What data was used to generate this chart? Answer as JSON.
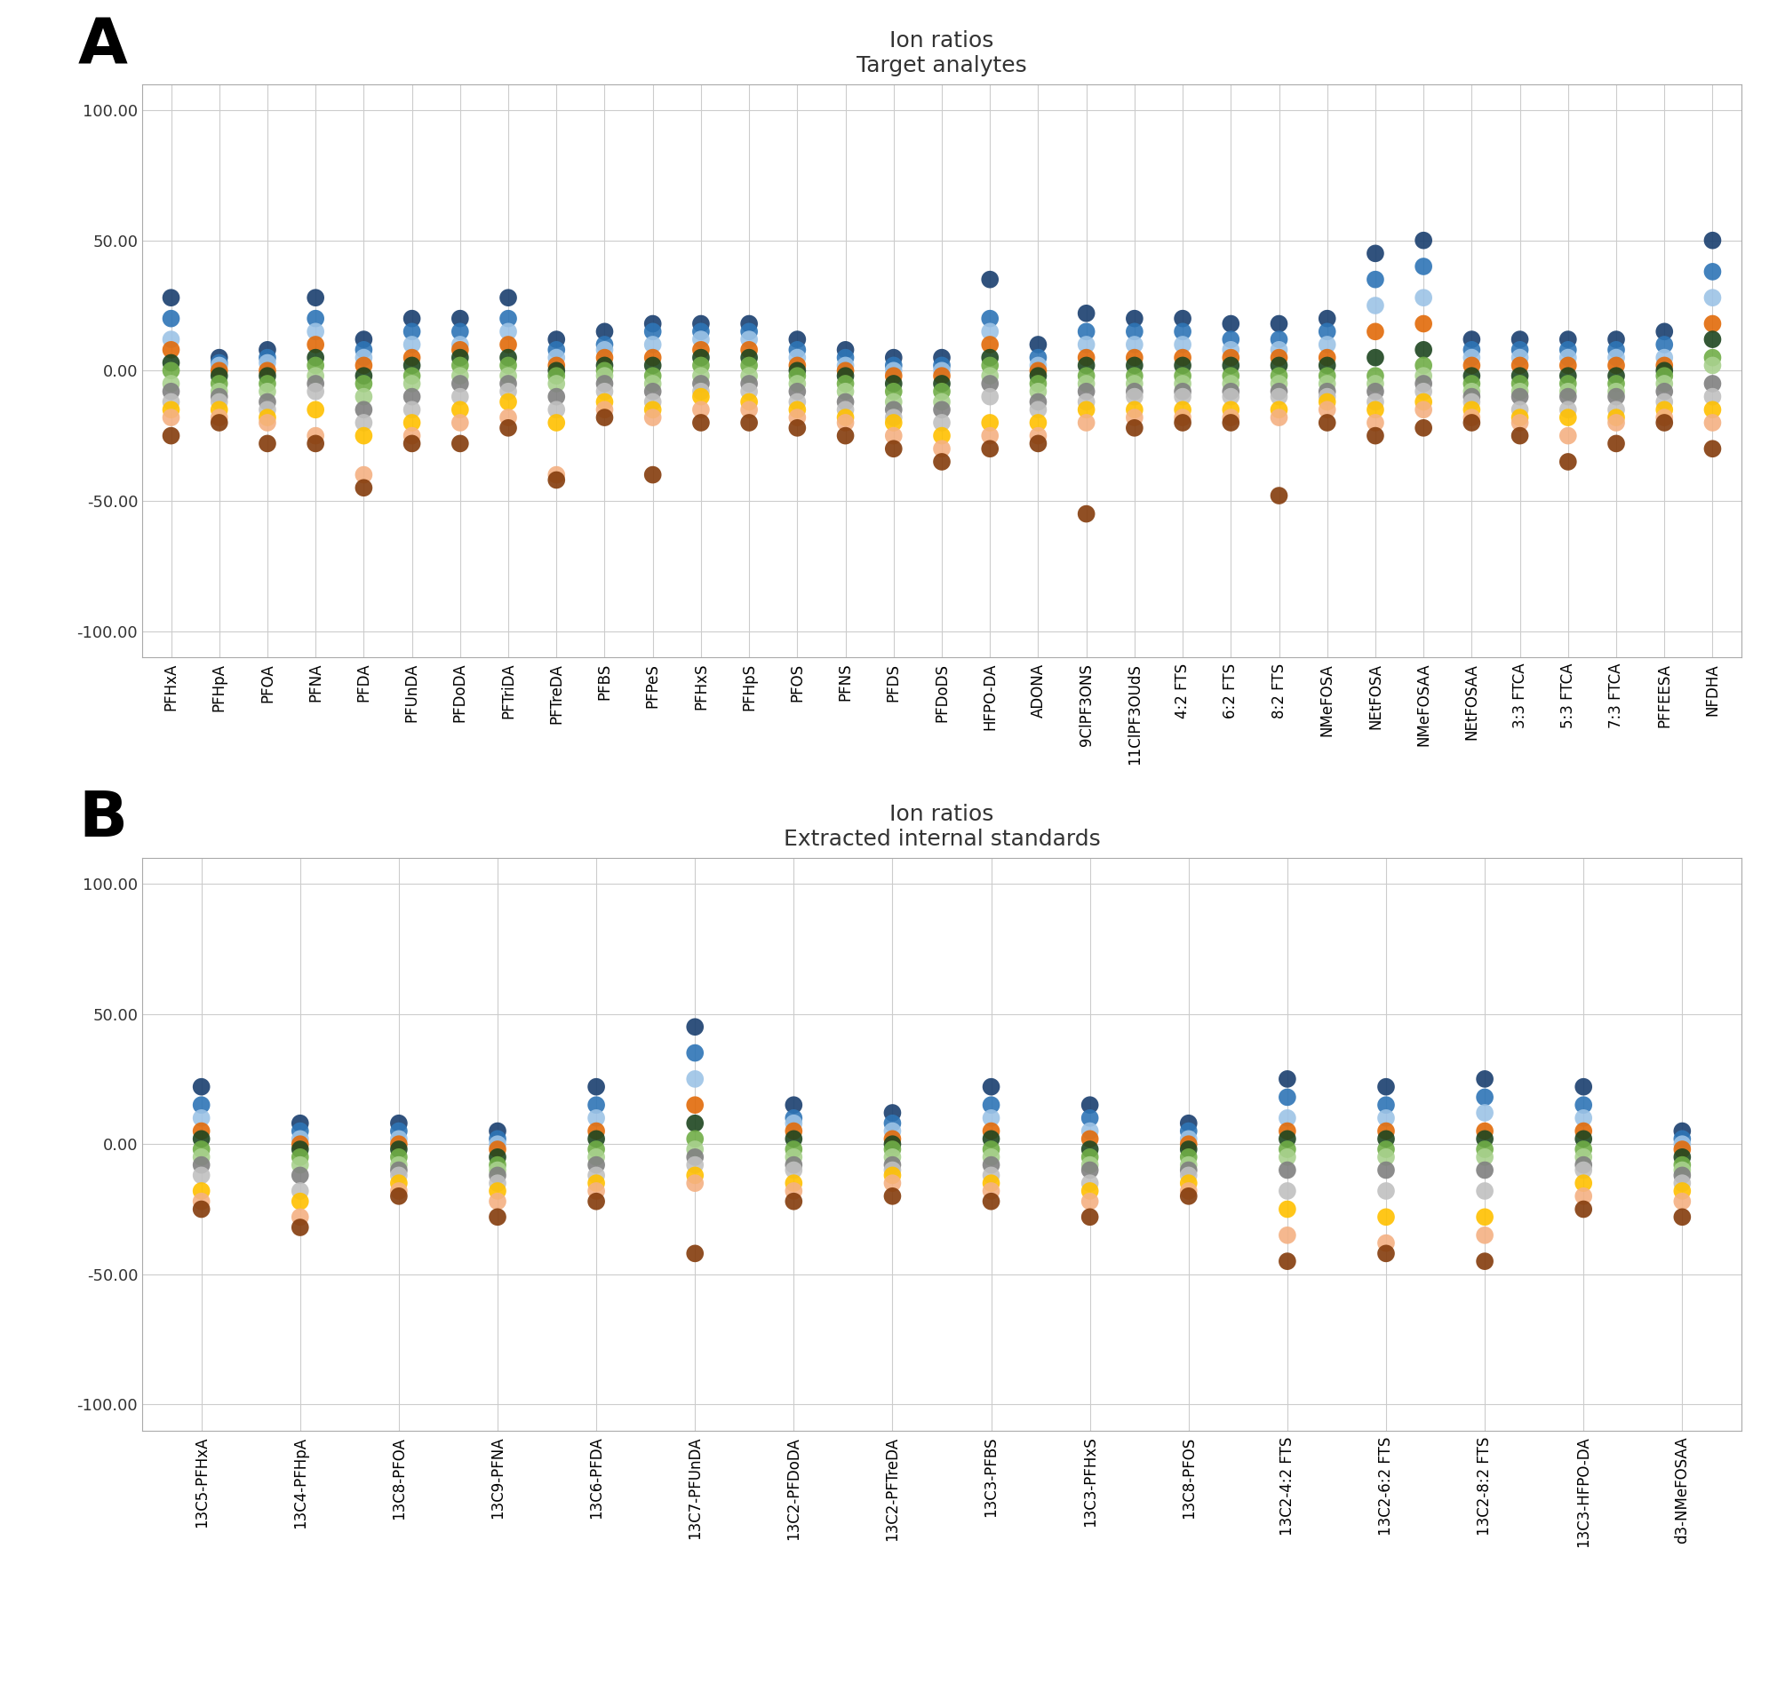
{
  "panel_A_title": "Ion ratios",
  "panel_A_subtitle": "Target analytes",
  "panel_B_title": "Ion ratios",
  "panel_B_subtitle": "Extracted internal standards",
  "panel_A_label": "A",
  "panel_B_label": "B",
  "ylim": [
    -110,
    110
  ],
  "yticks": [
    -100.0,
    -50.0,
    0.0,
    50.0,
    100.0
  ],
  "ytick_labels": [
    "-100.00",
    "-50.00",
    "0.00",
    "50.00",
    "100.00"
  ],
  "colors": [
    "#1a3f6f",
    "#2e75b6",
    "#9dc3e6",
    "#e26b0a",
    "#1e4620",
    "#70ad47",
    "#a9d18e",
    "#808080",
    "#c0c0c0",
    "#ffc000",
    "#f4b183",
    "#843c0c"
  ],
  "marker_size": 200,
  "alpha": 0.9,
  "panel_A_analytes": [
    "PFHxA",
    "PFHpA",
    "PFOA",
    "PFNA",
    "PFDA",
    "PFUnDA",
    "PFDoDA",
    "PFTriDA",
    "PFTreDA",
    "PFBS",
    "PFPeS",
    "PFHxS",
    "PFHpS",
    "PFOS",
    "PFNS",
    "PFDS",
    "PFDoDS",
    "HFPO-DA",
    "ADONA",
    "9ClPF3ONS",
    "11ClPF3OUdS",
    "4:2 FTS",
    "6:2 FTS",
    "8:2 FTS",
    "NMeFOSA",
    "NEtFOSA",
    "NMeFOSAA",
    "NEtFOSAA",
    "3:3 FTCA",
    "5:3 FTCA",
    "7:3 FTCA",
    "PFFEESA",
    "NFDHA"
  ],
  "panel_B_analytes": [
    "13C5-PFHxA",
    "13C4-PFHpA",
    "13C8-PFOA",
    "13C9-PFNA",
    "13C6-PFDA",
    "13C7-PFUnDA",
    "13C2-PFDoDA",
    "13C2-PFTreDA",
    "13C3-PFBS",
    "13C3-PFHxS",
    "13C8-PFOS",
    "13C2-4:2 FTS",
    "13C2-6:2 FTS",
    "13C2-8:2 FTS",
    "13C3-HFPO-DA",
    "d3-NMeFOSAA"
  ],
  "panel_A_data": {
    "PFHxA": [
      28,
      20,
      12,
      8,
      3,
      0,
      -5,
      -8,
      -12,
      -15,
      -18,
      -25
    ],
    "PFHpA": [
      5,
      3,
      2,
      0,
      -2,
      -5,
      -8,
      -10,
      -12,
      -15,
      -18,
      -20
    ],
    "PFOA": [
      8,
      5,
      3,
      0,
      -2,
      -5,
      -8,
      -12,
      -15,
      -18,
      -20,
      -28
    ],
    "PFNA": [
      28,
      20,
      15,
      10,
      5,
      2,
      -2,
      -5,
      -8,
      -15,
      -25,
      -28
    ],
    "PFDA": [
      12,
      8,
      5,
      2,
      -2,
      -5,
      -10,
      -15,
      -20,
      -25,
      -40,
      -45
    ],
    "PFUnDA": [
      20,
      15,
      10,
      5,
      2,
      -2,
      -5,
      -10,
      -15,
      -20,
      -25,
      -28
    ],
    "PFDoDA": [
      20,
      15,
      10,
      8,
      5,
      2,
      -2,
      -5,
      -10,
      -15,
      -20,
      -28
    ],
    "PFTriDA": [
      28,
      20,
      15,
      10,
      5,
      2,
      -2,
      -5,
      -8,
      -12,
      -18,
      -22
    ],
    "PFTreDA": [
      12,
      8,
      5,
      2,
      0,
      -2,
      -5,
      -10,
      -15,
      -20,
      -40,
      -42
    ],
    "PFBS": [
      15,
      10,
      8,
      5,
      2,
      0,
      -2,
      -5,
      -8,
      -12,
      -15,
      -18
    ],
    "PFPeS": [
      18,
      15,
      10,
      5,
      2,
      -2,
      -5,
      -8,
      -12,
      -15,
      -18,
      -40
    ],
    "PFHxS": [
      18,
      15,
      12,
      8,
      5,
      2,
      -2,
      -5,
      -8,
      -10,
      -15,
      -20
    ],
    "PFHpS": [
      18,
      15,
      12,
      8,
      5,
      2,
      -2,
      -5,
      -8,
      -12,
      -15,
      -20
    ],
    "PFOS": [
      12,
      8,
      5,
      2,
      0,
      -2,
      -5,
      -8,
      -12,
      -15,
      -18,
      -22
    ],
    "PFNS": [
      8,
      5,
      2,
      0,
      -2,
      -5,
      -8,
      -12,
      -15,
      -18,
      -20,
      -25
    ],
    "PFDS": [
      5,
      2,
      0,
      -2,
      -5,
      -8,
      -12,
      -15,
      -18,
      -20,
      -25,
      -30
    ],
    "PFDoDS": [
      5,
      2,
      0,
      -2,
      -5,
      -8,
      -12,
      -15,
      -20,
      -25,
      -30,
      -35
    ],
    "HFPO-DA": [
      35,
      20,
      15,
      10,
      5,
      2,
      -2,
      -5,
      -10,
      -20,
      -25,
      -30
    ],
    "ADONA": [
      10,
      5,
      2,
      0,
      -2,
      -5,
      -8,
      -12,
      -15,
      -20,
      -25,
      -28
    ],
    "9ClPF3ONS": [
      22,
      15,
      10,
      5,
      2,
      -2,
      -5,
      -8,
      -12,
      -15,
      -20,
      -55
    ],
    "11ClPF3OUdS": [
      20,
      15,
      10,
      5,
      2,
      -2,
      -5,
      -8,
      -10,
      -15,
      -18,
      -22
    ],
    "4:2 FTS": [
      20,
      15,
      10,
      5,
      2,
      -2,
      -5,
      -8,
      -10,
      -15,
      -18,
      -20
    ],
    "6:2 FTS": [
      18,
      12,
      8,
      5,
      2,
      -2,
      -5,
      -8,
      -10,
      -15,
      -18,
      -20
    ],
    "8:2 FTS": [
      18,
      12,
      8,
      5,
      2,
      -2,
      -5,
      -8,
      -10,
      -15,
      -18,
      -48
    ],
    "NMeFOSA": [
      20,
      15,
      10,
      5,
      2,
      -2,
      -5,
      -8,
      -10,
      -12,
      -15,
      -20
    ],
    "NEtFOSA": [
      45,
      35,
      25,
      15,
      5,
      -2,
      -5,
      -8,
      -12,
      -15,
      -20,
      -25
    ],
    "NMeFOSAA": [
      50,
      40,
      28,
      18,
      8,
      2,
      -2,
      -5,
      -8,
      -12,
      -15,
      -22
    ],
    "NEtFOSAA": [
      12,
      8,
      5,
      2,
      -2,
      -5,
      -8,
      -10,
      -12,
      -15,
      -18,
      -20
    ],
    "3:3 FTCA": [
      12,
      8,
      5,
      2,
      -2,
      -5,
      -8,
      -10,
      -15,
      -18,
      -20,
      -25
    ],
    "5:3 FTCA": [
      12,
      8,
      5,
      2,
      -2,
      -5,
      -8,
      -10,
      -15,
      -18,
      -25,
      -35
    ],
    "7:3 FTCA": [
      12,
      8,
      5,
      2,
      -2,
      -5,
      -8,
      -10,
      -15,
      -18,
      -20,
      -28
    ],
    "PFFEESA": [
      15,
      10,
      5,
      2,
      0,
      -2,
      -5,
      -8,
      -12,
      -15,
      -18,
      -20
    ],
    "NFDHA": [
      50,
      38,
      28,
      18,
      12,
      5,
      2,
      -5,
      -10,
      -15,
      -20,
      -30
    ]
  },
  "panel_B_data": {
    "13C5-PFHxA": [
      22,
      15,
      10,
      5,
      2,
      -2,
      -5,
      -8,
      -12,
      -18,
      -22,
      -25
    ],
    "13C4-PFHpA": [
      8,
      5,
      2,
      0,
      -2,
      -5,
      -8,
      -12,
      -18,
      -22,
      -28,
      -32
    ],
    "13C8-PFOA": [
      8,
      5,
      2,
      0,
      -2,
      -5,
      -8,
      -10,
      -12,
      -15,
      -18,
      -20
    ],
    "13C9-PFNA": [
      5,
      2,
      0,
      -2,
      -5,
      -8,
      -10,
      -12,
      -15,
      -18,
      -22,
      -28
    ],
    "13C6-PFDA": [
      22,
      15,
      10,
      5,
      2,
      -2,
      -5,
      -8,
      -12,
      -15,
      -18,
      -22
    ],
    "13C7-PFUnDA": [
      45,
      35,
      25,
      15,
      8,
      2,
      -2,
      -5,
      -8,
      -12,
      -15,
      -42
    ],
    "13C2-PFDoDA": [
      15,
      10,
      8,
      5,
      2,
      -2,
      -5,
      -8,
      -10,
      -15,
      -18,
      -22
    ],
    "13C2-PFTreDA": [
      12,
      8,
      5,
      2,
      0,
      -2,
      -5,
      -8,
      -10,
      -12,
      -15,
      -20
    ],
    "13C3-PFBS": [
      22,
      15,
      10,
      5,
      2,
      -2,
      -5,
      -8,
      -12,
      -15,
      -18,
      -22
    ],
    "13C3-PFHxS": [
      15,
      10,
      5,
      2,
      -2,
      -5,
      -8,
      -10,
      -15,
      -18,
      -22,
      -28
    ],
    "13C8-PFOS": [
      8,
      5,
      2,
      0,
      -2,
      -5,
      -8,
      -10,
      -12,
      -15,
      -18,
      -20
    ],
    "13C2-4:2 FTS": [
      25,
      18,
      10,
      5,
      2,
      -2,
      -5,
      -10,
      -18,
      -25,
      -35,
      -45
    ],
    "13C2-6:2 FTS": [
      22,
      15,
      10,
      5,
      2,
      -2,
      -5,
      -10,
      -18,
      -28,
      -38,
      -42
    ],
    "13C2-8:2 FTS": [
      25,
      18,
      12,
      5,
      2,
      -2,
      -5,
      -10,
      -18,
      -28,
      -35,
      -45
    ],
    "13C3-HFPO-DA": [
      22,
      15,
      10,
      5,
      2,
      -2,
      -5,
      -8,
      -10,
      -15,
      -20,
      -25
    ],
    "d3-NMeFOSAA": [
      5,
      2,
      0,
      -2,
      -5,
      -8,
      -10,
      -12,
      -15,
      -18,
      -22,
      -28
    ]
  }
}
